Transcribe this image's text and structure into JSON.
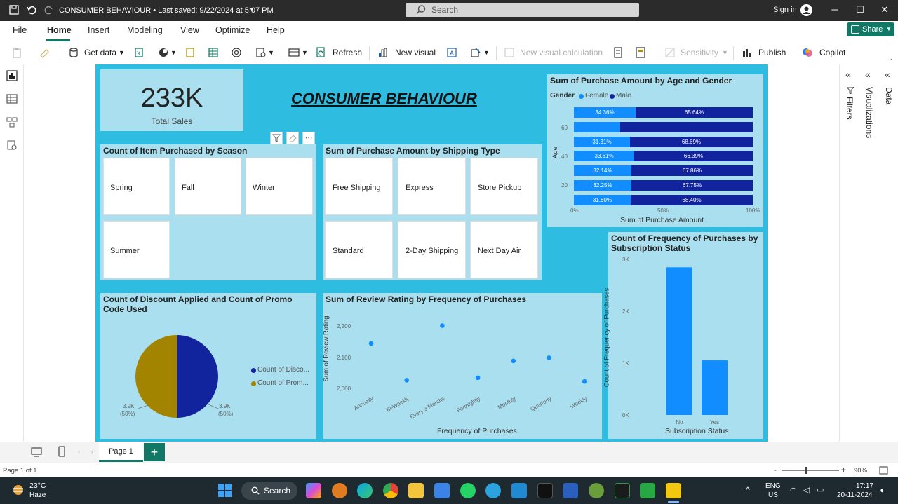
{
  "titlebar": {
    "doc_title": "CONSUMER BEHAVIOUR • Last saved: 9/22/2024 at 5:07 PM",
    "search_placeholder": "Search",
    "signin": "Sign in"
  },
  "menu": {
    "items": [
      "File",
      "Home",
      "Insert",
      "Modeling",
      "View",
      "Optimize",
      "Help"
    ],
    "active": "Home",
    "share": "Share"
  },
  "ribbon": {
    "get_data": "Get data",
    "refresh": "Refresh",
    "new_visual": "New visual",
    "new_visual_calc": "New visual calculation",
    "sensitivity": "Sensitivity",
    "publish": "Publish",
    "copilot": "Copilot"
  },
  "report": {
    "title": "CONSUMER BEHAVIOUR",
    "kpi": {
      "value": "233K",
      "label": "Total Sales"
    },
    "season_slicer": {
      "title": "Count of Item Purchased by Season",
      "items": [
        "Spring",
        "Fall",
        "Winter",
        "Summer"
      ]
    },
    "shipping_slicer": {
      "title": "Sum of Purchase Amount by Shipping Type",
      "items": [
        "Free Shipping",
        "Express",
        "Store Pickup",
        "Standard",
        "2-Day Shipping",
        "Next Day Air"
      ]
    },
    "pie": {
      "title": "Count of Discount Applied and Count of Promo Code Used",
      "legend": [
        "Count of Disco...",
        "Count of Prom..."
      ],
      "left_label": [
        "3.9K",
        "(50%)"
      ],
      "right_label": [
        "3.9K",
        "(50%)"
      ],
      "colors": [
        "#12239e",
        "#a28400"
      ]
    },
    "age_gender": {
      "title": "Sum of Purchase Amount by Age and Gender",
      "legend_title": "Gender",
      "legend": [
        "Female",
        "Male"
      ],
      "colors": [
        "#118dff",
        "#12239e"
      ],
      "ylabel": "Age",
      "xlabel": "Sum of Purchase Amount",
      "y_ticks": [
        "60",
        "40",
        "20"
      ],
      "x_ticks": [
        "0%",
        "50%",
        "100%"
      ]
    },
    "review": {
      "title": "Sum of Review Rating by Frequency of Purchases",
      "ylabel": "Sum of Review Rating",
      "xlabel": "Frequency of Purchases",
      "y_ticks": [
        "2,200",
        "2,100",
        "2,000"
      ]
    },
    "subscription": {
      "title_line1": "Count of Frequency of Purchases by",
      "title_line2": "Subscription Status",
      "ylabel": "Count of Frequency of Purchases",
      "xlabel": "Subscription Status",
      "y_ticks": [
        "3K",
        "2K",
        "1K",
        "0K"
      ]
    }
  },
  "chart_data": [
    {
      "type": "bar",
      "orientation": "horizontal-100%-stacked",
      "title": "Sum of Purchase Amount by Age and Gender",
      "xlabel": "Sum of Purchase Amount",
      "ylabel": "Age",
      "series": [
        {
          "name": "Female",
          "values": [
            34.36,
            26.0,
            31.31,
            33.61,
            32.14,
            32.25,
            31.6
          ]
        },
        {
          "name": "Male",
          "values": [
            65.64,
            74.0,
            68.69,
            66.39,
            67.86,
            67.75,
            68.4
          ]
        }
      ],
      "labels_shown": [
        [
          "34.36%",
          "65.64%"
        ],
        [
          "",
          ""
        ],
        [
          "31.31%",
          "68.69%"
        ],
        [
          "33.61%",
          "66.39%"
        ],
        [
          "32.14%",
          "67.86%"
        ],
        [
          "32.25%",
          "67.75%"
        ],
        [
          "31.60%",
          "68.40%"
        ]
      ],
      "xlim": [
        0,
        100
      ]
    },
    {
      "type": "scatter",
      "title": "Sum of Review Rating by Frequency of Purchases",
      "xlabel": "Frequency of Purchases",
      "ylabel": "Sum of Review Rating",
      "categories": [
        "Annually",
        "Bi-Weekly",
        "Every 3 Months",
        "Fortnightly",
        "Monthly",
        "Quarterly",
        "Weekly"
      ],
      "values": [
        2144,
        2026,
        2201,
        2034,
        2088,
        2098,
        2022
      ],
      "ylim": [
        1990,
        2220
      ]
    },
    {
      "type": "bar",
      "title": "Count of Frequency of Purchases by Subscription Status",
      "xlabel": "Subscription Status",
      "ylabel": "Count of Frequency of Purchases",
      "categories": [
        "No",
        "Yes"
      ],
      "values": [
        2847,
        1053
      ],
      "ylim": [
        0,
        3000
      ]
    },
    {
      "type": "pie",
      "title": "Count of Discount Applied and Count of Promo Code Used",
      "categories": [
        "Count of Discount Applied",
        "Count of Promo Code Used"
      ],
      "values": [
        50,
        50
      ]
    }
  ],
  "panes": {
    "filters": "Filters",
    "visualizations": "Visualizations",
    "data": "Data"
  },
  "pages": {
    "tab": "Page 1",
    "status": "Page 1 of 1",
    "zoom": "90%"
  },
  "taskbar": {
    "weather_temp": "23°C",
    "weather_desc": "Haze",
    "search": "Search",
    "lang1": "ENG",
    "lang2": "US",
    "time": "17:17",
    "date": "20-11-2024"
  }
}
